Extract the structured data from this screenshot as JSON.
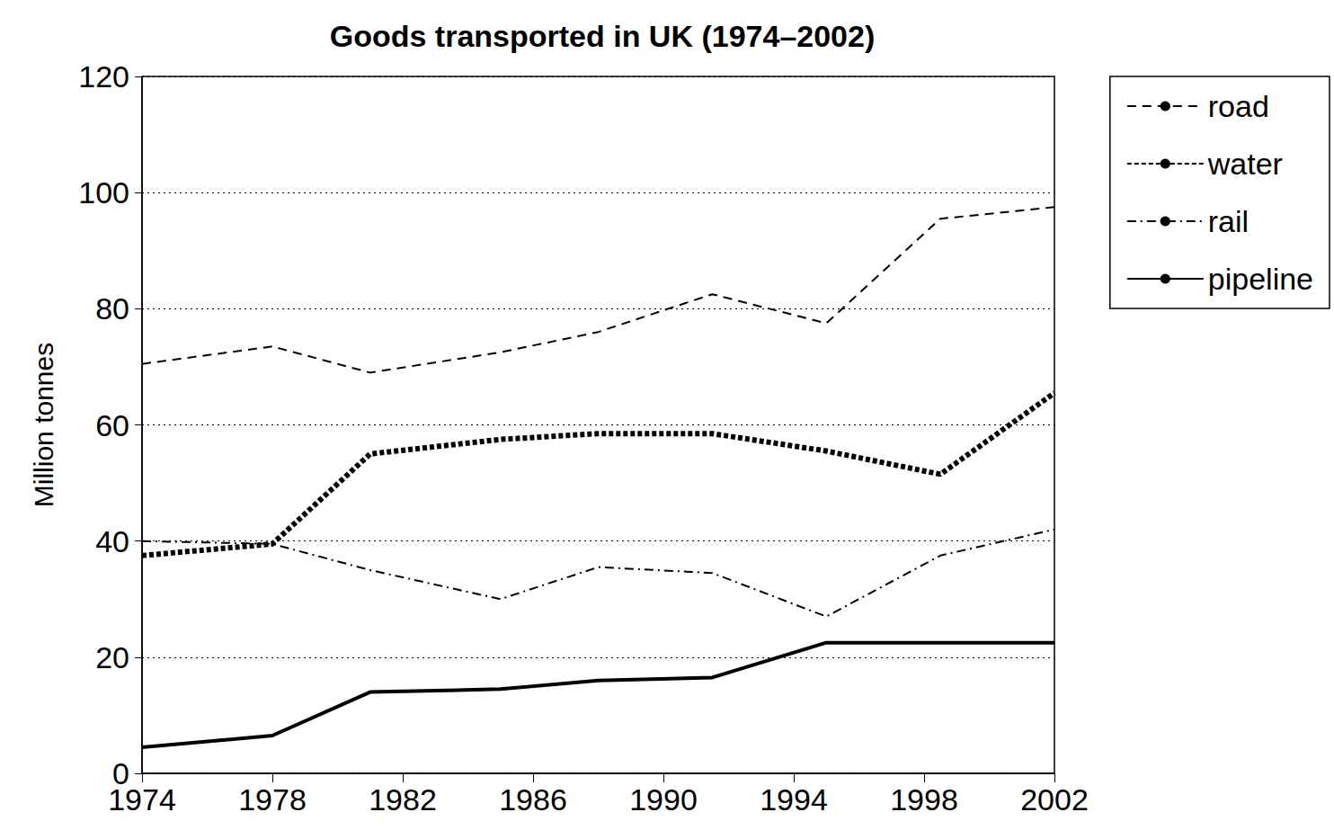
{
  "chart_data": {
    "type": "line",
    "title": "Goods transported in UK (1974–2002)",
    "y_label": "Million tonnes",
    "x": [
      1974,
      1978,
      1981,
      1985,
      1988,
      1991.5,
      1995,
      1998.5,
      2002
    ],
    "series": [
      {
        "name": "road",
        "color": "#000000",
        "line_style": "dashed",
        "values": [
          70.5,
          73.5,
          69,
          72.5,
          76,
          82.5,
          77.5,
          95.5,
          97.5
        ]
      },
      {
        "name": "water",
        "color": "#000000",
        "line_style": "dotted",
        "values": [
          37.5,
          39.5,
          55,
          57.5,
          58.5,
          58.5,
          55.5,
          51.5,
          65.5
        ]
      },
      {
        "name": "rail",
        "color": "#000000",
        "line_style": "dashdot",
        "values": [
          40,
          39.5,
          35,
          30,
          35.5,
          34.5,
          27,
          37.5,
          42
        ]
      },
      {
        "name": "pipeline",
        "color": "#000000",
        "line_style": "solid",
        "values": [
          4.5,
          6.5,
          14,
          14.5,
          16,
          16.5,
          22.5,
          22.5,
          22.5
        ]
      }
    ],
    "xlim": [
      1974,
      2002
    ],
    "xticks": [
      1974,
      1978,
      1982,
      1986,
      1990,
      1994,
      1998,
      2002
    ],
    "ylim": [
      0,
      120
    ],
    "yticks": [
      0,
      20,
      40,
      60,
      80,
      100,
      120
    ],
    "grid": true,
    "legend": "top right"
  }
}
